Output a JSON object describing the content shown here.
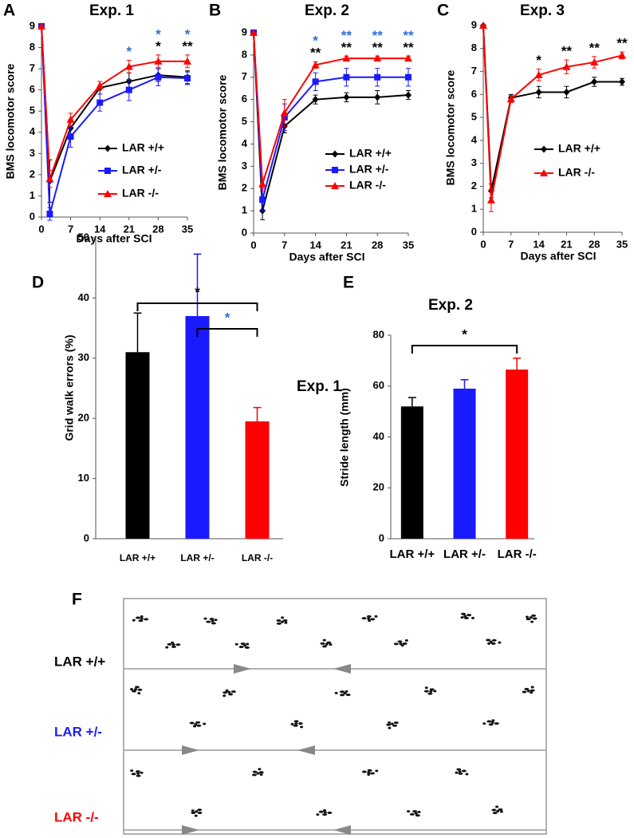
{
  "chart_data": [
    {
      "type": "line",
      "panel": "A",
      "title": "Exp. 1",
      "x_label": "Days after SCI",
      "y_label": "BMS locomotor score",
      "x": [
        0,
        2,
        7,
        14,
        21,
        28,
        35
      ],
      "xlim": [
        0,
        35
      ],
      "xticks": [
        0,
        7,
        14,
        21,
        28,
        35
      ],
      "ylim": [
        0,
        9
      ],
      "yticks": [
        0,
        1,
        2,
        3,
        4,
        5,
        6,
        7,
        8,
        9
      ],
      "series": [
        {
          "name": "LAR +/+",
          "color": "#000000",
          "marker": "diamond",
          "values": [
            9,
            1.7,
            4.2,
            6.1,
            6.4,
            6.7,
            6.6
          ],
          "errors": [
            0,
            1.0,
            0.4,
            0.3,
            0.4,
            0.3,
            0.3
          ]
        },
        {
          "name": "LAR +/-",
          "color": "#1a1aff",
          "marker": "square",
          "values": [
            9,
            0.15,
            3.8,
            5.4,
            6.0,
            6.6,
            6.55
          ],
          "errors": [
            0,
            0.3,
            0.5,
            0.4,
            0.5,
            0.4,
            0.3
          ]
        },
        {
          "name": "LAR -/-",
          "color": "#ff0000",
          "marker": "triangle",
          "values": [
            9,
            1.8,
            4.6,
            6.2,
            7.1,
            7.35,
            7.35
          ],
          "errors": [
            0,
            0.4,
            0.3,
            0.2,
            0.3,
            0.3,
            0.3
          ]
        }
      ],
      "annotations": [
        {
          "x": 21,
          "labels": [
            {
              "text": "*",
              "color": "#2e6fd8"
            }
          ]
        },
        {
          "x": 28,
          "labels": [
            {
              "text": "*",
              "color": "#2e6fd8"
            },
            {
              "text": "*",
              "color": "#000000"
            }
          ]
        },
        {
          "x": 35,
          "labels": [
            {
              "text": "*",
              "color": "#2e6fd8"
            },
            {
              "text": "**",
              "color": "#000000"
            }
          ]
        }
      ]
    },
    {
      "type": "line",
      "panel": "B",
      "title": "Exp. 2",
      "x_label": "Days after SCI",
      "y_label": "BMS locomotor score",
      "x": [
        0,
        2,
        7,
        14,
        21,
        28,
        35
      ],
      "xlim": [
        0,
        35
      ],
      "xticks": [
        0,
        7,
        14,
        21,
        28,
        35
      ],
      "ylim": [
        0,
        9
      ],
      "yticks": [
        0,
        1,
        2,
        3,
        4,
        5,
        6,
        7,
        8,
        9
      ],
      "series": [
        {
          "name": "LAR +/+",
          "color": "#000000",
          "marker": "diamond",
          "values": [
            9,
            1.0,
            4.8,
            6.0,
            6.1,
            6.1,
            6.2
          ],
          "errors": [
            0,
            0.4,
            0.3,
            0.2,
            0.2,
            0.3,
            0.2
          ]
        },
        {
          "name": "LAR +/-",
          "color": "#1a1aff",
          "marker": "square",
          "values": [
            9,
            1.5,
            5.2,
            6.8,
            7.0,
            7.0,
            7.0
          ],
          "errors": [
            0,
            0.5,
            0.6,
            0.4,
            0.4,
            0.4,
            0.4
          ]
        },
        {
          "name": "LAR -/-",
          "color": "#ff0000",
          "marker": "triangle",
          "values": [
            9,
            2.2,
            5.4,
            7.55,
            7.85,
            7.85,
            7.85
          ],
          "errors": [
            0,
            0.3,
            0.6,
            0.15,
            0.1,
            0.1,
            0.1
          ]
        }
      ],
      "annotations": [
        {
          "x": 14,
          "labels": [
            {
              "text": "*",
              "color": "#2e6fd8"
            },
            {
              "text": "**",
              "color": "#000000"
            }
          ]
        },
        {
          "x": 21,
          "labels": [
            {
              "text": "**",
              "color": "#2e6fd8"
            },
            {
              "text": "**",
              "color": "#000000"
            }
          ]
        },
        {
          "x": 28,
          "labels": [
            {
              "text": "**",
              "color": "#2e6fd8"
            },
            {
              "text": "**",
              "color": "#000000"
            }
          ]
        },
        {
          "x": 35,
          "labels": [
            {
              "text": "**",
              "color": "#2e6fd8"
            },
            {
              "text": "**",
              "color": "#000000"
            }
          ]
        }
      ]
    },
    {
      "type": "line",
      "panel": "C",
      "title": "Exp. 3",
      "x_label": "Days after SCI",
      "y_label": "BMS locomotor score",
      "x": [
        0,
        2,
        7,
        14,
        21,
        28,
        35
      ],
      "xlim": [
        0,
        35
      ],
      "xticks": [
        0,
        7,
        14,
        21,
        28,
        35
      ],
      "ylim": [
        0,
        9
      ],
      "yticks": [
        0,
        1,
        2,
        3,
        4,
        5,
        6,
        7,
        8,
        9
      ],
      "series": [
        {
          "name": "LAR +/+",
          "color": "#000000",
          "marker": "diamond",
          "values": [
            9,
            1.8,
            5.85,
            6.1,
            6.1,
            6.55,
            6.55
          ],
          "errors": [
            0,
            0.3,
            0.15,
            0.25,
            0.25,
            0.2,
            0.15
          ]
        },
        {
          "name": "LAR -/-",
          "color": "#ff0000",
          "marker": "triangle",
          "values": [
            9,
            1.4,
            5.8,
            6.85,
            7.2,
            7.4,
            7.7
          ],
          "errors": [
            0,
            0.5,
            0.15,
            0.25,
            0.3,
            0.25,
            0.15
          ]
        }
      ],
      "annotations": [
        {
          "x": 14,
          "labels": [
            {
              "text": "*",
              "color": "#000000"
            }
          ]
        },
        {
          "x": 21,
          "labels": [
            {
              "text": "**",
              "color": "#000000"
            }
          ]
        },
        {
          "x": 28,
          "labels": [
            {
              "text": "**",
              "color": "#000000"
            }
          ]
        },
        {
          "x": 35,
          "labels": [
            {
              "text": "**",
              "color": "#000000"
            }
          ]
        }
      ]
    },
    {
      "type": "bar",
      "panel": "D",
      "annotation": "Exp. 1",
      "y_label": "Grid walk errors (%)",
      "categories": [
        "LAR +/+",
        "LAR +/-",
        "LAR -/-"
      ],
      "values": [
        31,
        37,
        19.5
      ],
      "errors": [
        6.5,
        10.3,
        2.3
      ],
      "colors": [
        "#000000",
        "#1a1aff",
        "#ff0000"
      ],
      "ylim": [
        0,
        50
      ],
      "yticks": [
        0,
        10,
        20,
        30,
        40,
        50
      ],
      "brackets": [
        {
          "from": "LAR +/+",
          "to": "LAR -/-",
          "text": "*",
          "color": "#000000"
        },
        {
          "from": "LAR +/-",
          "to": "LAR -/-",
          "text": "*",
          "color": "#2e6fd8"
        }
      ]
    },
    {
      "type": "bar",
      "panel": "E",
      "title": "Exp. 2",
      "y_label": "Stride length (mm)",
      "categories": [
        "LAR +/+",
        "LAR +/-",
        "LAR -/-"
      ],
      "values": [
        52,
        59,
        66.5
      ],
      "errors": [
        3.5,
        3.5,
        4.5
      ],
      "colors": [
        "#000000",
        "#1a1aff",
        "#ff0000"
      ],
      "ylim": [
        0,
        80
      ],
      "yticks": [
        0,
        20,
        40,
        60,
        80
      ],
      "brackets": [
        {
          "from": "LAR +/+",
          "to": "LAR -/-",
          "text": "*",
          "color": "#000000"
        }
      ]
    }
  ],
  "panel_f": {
    "letter": "F",
    "rows": [
      "LAR +/+",
      "LAR +/-",
      "LAR -/-"
    ]
  }
}
